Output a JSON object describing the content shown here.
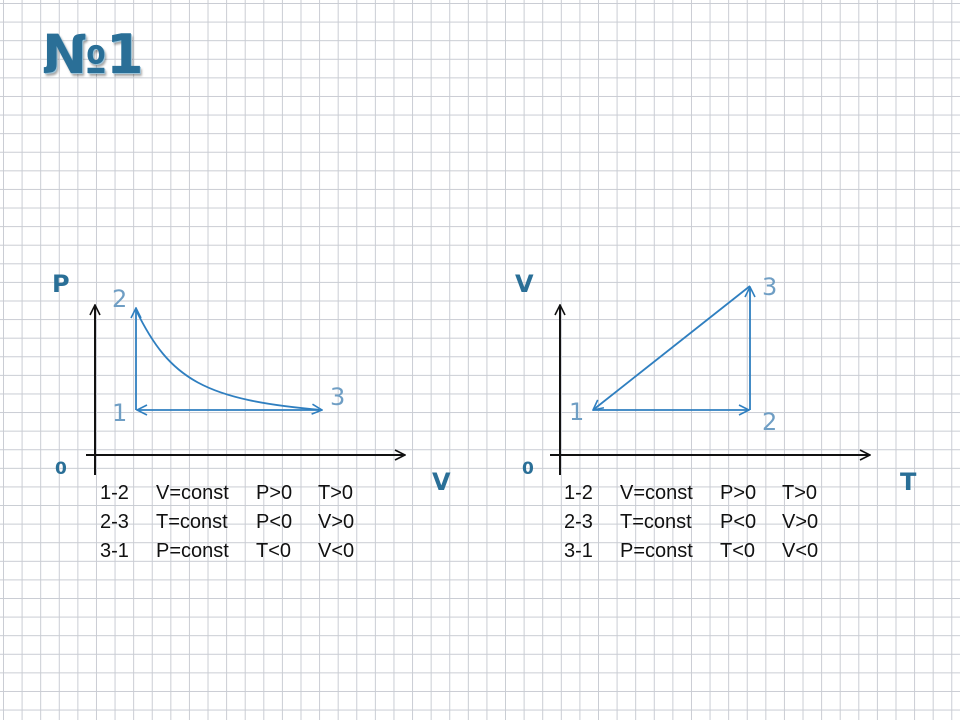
{
  "title": "№1",
  "graphs": [
    {
      "y_axis_label": "P",
      "x_axis_label": "V",
      "origin_label": "0",
      "points": [
        {
          "label": "1"
        },
        {
          "label": "2"
        },
        {
          "label": "3"
        }
      ],
      "processes": [
        {
          "process": "1-2",
          "condition": "V=const",
          "sign1": "P>0",
          "sign2": "T>0"
        },
        {
          "process": "2-3",
          "condition": "T=const",
          "sign1": "P<0",
          "sign2": "V>0"
        },
        {
          "process": "3-1",
          "condition": "P=const",
          "sign1": "T<0",
          "sign2": "V<0"
        }
      ]
    },
    {
      "y_axis_label": "V",
      "x_axis_label": "T",
      "origin_label": "0",
      "points": [
        {
          "label": "1"
        },
        {
          "label": "2"
        },
        {
          "label": "3"
        }
      ],
      "processes": [
        {
          "process": "1-2",
          "condition": "V=const",
          "sign1": "P>0",
          "sign2": "T>0"
        },
        {
          "process": "2-3",
          "condition": "T=const",
          "sign1": "P<0",
          "sign2": "V>0"
        },
        {
          "process": "3-1",
          "condition": "P=const",
          "sign1": "T<0",
          "sign2": "V<0"
        }
      ]
    }
  ],
  "colors": {
    "axis": "#111111",
    "curve": "#2f7fc0",
    "labels": "#2a6f97",
    "point_labels": "#6f9ec4"
  }
}
